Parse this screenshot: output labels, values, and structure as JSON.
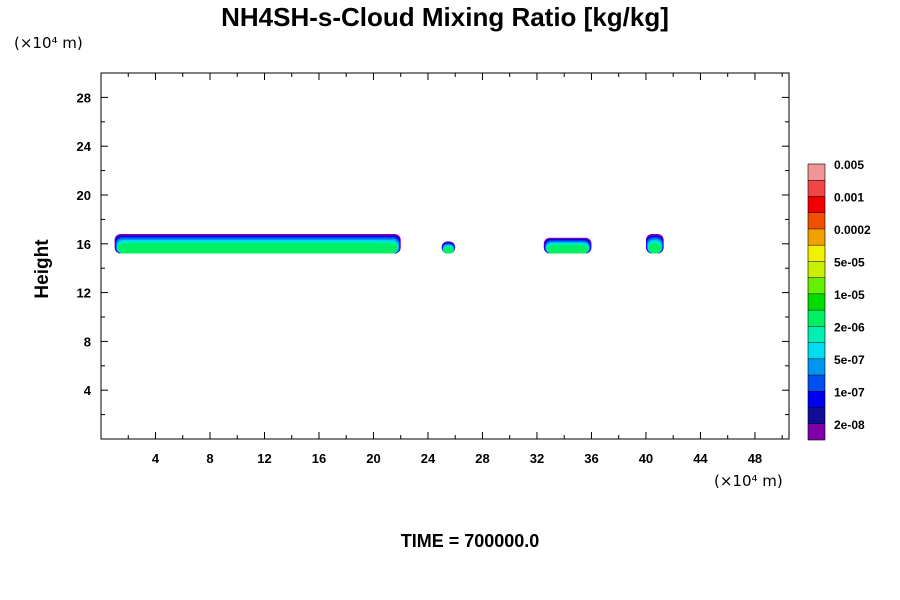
{
  "chart_data": {
    "type": "heatmap",
    "title": "NH4SH-s-Cloud Mixing Ratio [kg/kg]",
    "ylabel": "Height",
    "xunit_note": "(×10⁴ m)",
    "yunit_note": "(×10⁴ m)",
    "footer": "TIME = 700000.0",
    "xlim": [
      0,
      50.5
    ],
    "ylim": [
      0,
      30
    ],
    "xticks": [
      4,
      8,
      12,
      16,
      20,
      24,
      28,
      32,
      36,
      40,
      44,
      48
    ],
    "yticks": [
      4,
      8,
      12,
      16,
      20,
      24,
      28
    ],
    "grid": false,
    "legend": "right colorbar",
    "colorbar": {
      "colors": [
        "#7f00a8",
        "#0e0e96",
        "#0000f0",
        "#0050f0",
        "#0096f0",
        "#00dcf0",
        "#00f0b4",
        "#00f064",
        "#00dc00",
        "#64f000",
        "#c8f000",
        "#f0f000",
        "#f0a000",
        "#f05000",
        "#f00000",
        "#f04646",
        "#f09696"
      ],
      "labels": [
        "2e-08",
        "1e-07",
        "5e-07",
        "2e-06",
        "1e-05",
        "5e-05",
        "0.0002",
        "0.001",
        "0.005"
      ]
    },
    "cloud_regions": [
      {
        "x": [
          1.0,
          22.0
        ],
        "y": [
          15.2,
          16.8
        ]
      },
      {
        "x": [
          25.0,
          26.0
        ],
        "y": [
          15.2,
          16.2
        ]
      },
      {
        "x": [
          32.5,
          36.0
        ],
        "y": [
          15.2,
          16.5
        ]
      },
      {
        "x": [
          40.0,
          41.3
        ],
        "y": [
          15.2,
          16.8
        ]
      }
    ]
  }
}
